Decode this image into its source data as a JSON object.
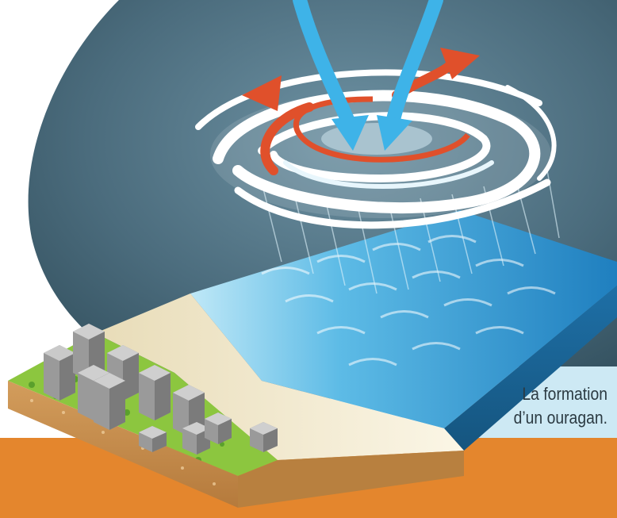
{
  "caption": {
    "line1": "La formation",
    "line2": "d’un ouragan."
  },
  "colors": {
    "sky_dark": "#36505e",
    "sky_light": "#5b7d8f",
    "ocean": "#3fa2d8",
    "ocean_light": "#8fd3f2",
    "sand": "#efe4c4",
    "grass": "#8cc63f",
    "soil": "#c8965a",
    "banner_orange": "#e4862d",
    "banner_light_blue": "#cde9f4",
    "warm_air_arrow": "#e0502b",
    "cool_air_arrow": "#3eb3e8",
    "cloud": "#ffffff",
    "building": "#9a9a9a"
  },
  "icons": {
    "hurricane": "hurricane-swirl-icon",
    "warm_air": "rising-warm-air-arrow-icon",
    "cool_air": "descending-cool-air-arrow-icon",
    "buildings": "city-buildings-icon"
  }
}
